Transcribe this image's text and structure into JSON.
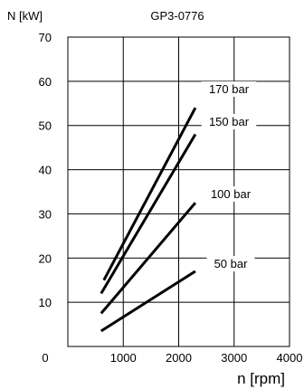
{
  "chart_data": {
    "type": "line",
    "title": "GP3-0776",
    "xlabel": "n [rpm]",
    "ylabel": "N [kW]",
    "xlim": [
      0,
      4000
    ],
    "ylim": [
      0,
      70
    ],
    "x_ticks": [
      0,
      1000,
      2000,
      3000,
      4000
    ],
    "y_ticks": [
      10,
      20,
      30,
      40,
      50,
      60,
      70
    ],
    "x_tick_labels": [
      "0",
      "1000",
      "2000",
      "3000",
      "4000"
    ],
    "y_tick_labels": [
      "10",
      "20",
      "30",
      "40",
      "50",
      "60",
      "70"
    ],
    "grid": true,
    "legend": "inline labels",
    "series": [
      {
        "name": "170 bar",
        "x": [
          650,
          2300
        ],
        "y": [
          15,
          54
        ],
        "color": "#000000"
      },
      {
        "name": "150 bar",
        "x": [
          600,
          2300
        ],
        "y": [
          12,
          48
        ],
        "color": "#000000"
      },
      {
        "name": "100 bar",
        "x": [
          600,
          2300
        ],
        "y": [
          7.5,
          32.5
        ],
        "color": "#000000"
      },
      {
        "name": "50 bar",
        "x": [
          600,
          2300
        ],
        "y": [
          3.5,
          17
        ],
        "color": "#000000"
      }
    ]
  }
}
